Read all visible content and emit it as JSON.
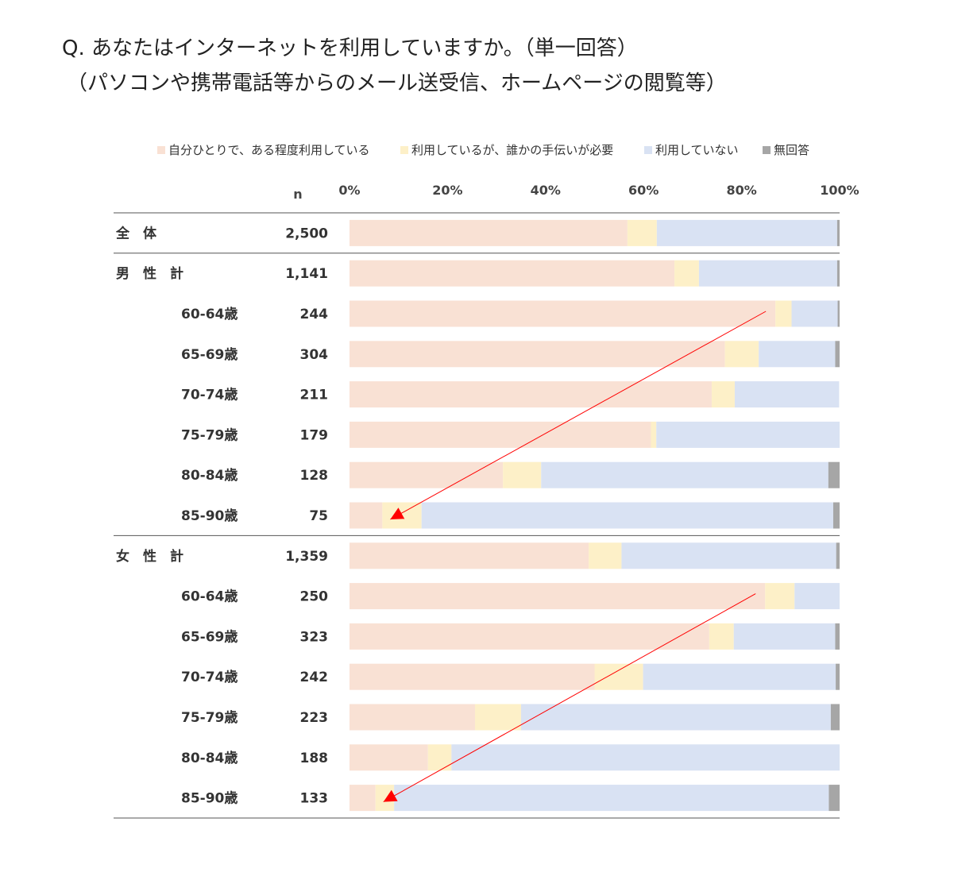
{
  "title": {
    "line1": "Q. あなたはインターネットを利用していますか。（単一回答）",
    "line2": "（パソコンや携帯電話等からのメール送受信、ホームページの閲覧等）"
  },
  "chart_data": {
    "type": "bar",
    "orientation": "horizontal",
    "stacked": "percent",
    "legend_position": "top",
    "n_header": "n",
    "xlim": [
      0,
      100
    ],
    "xticks": [
      "0%",
      "20%",
      "40%",
      "60%",
      "80%",
      "100%"
    ],
    "colors": [
      "#f9e1d4",
      "#fdf0c8",
      "#d9e2f3",
      "#a6a6a6"
    ],
    "series": [
      {
        "name": "自分ひとりで、ある程度利用している"
      },
      {
        "name": "利用しているが、誰かの手伝いが必要"
      },
      {
        "name": "利用していない"
      },
      {
        "name": "無回答"
      }
    ],
    "rows": [
      {
        "label": "全　体",
        "n": "2,500",
        "values": [
          56.7,
          6.0,
          36.8,
          0.5
        ],
        "level": 0
      },
      {
        "label": "男　性　計",
        "n": "1,141",
        "values": [
          66.3,
          5.0,
          28.2,
          0.5
        ],
        "level": 0
      },
      {
        "label": "60-64歳",
        "n": "244",
        "values": [
          86.9,
          3.3,
          9.4,
          0.4
        ],
        "level": 1
      },
      {
        "label": "65-69歳",
        "n": "304",
        "values": [
          76.6,
          6.9,
          15.6,
          0.9
        ],
        "level": 1
      },
      {
        "label": "70-74歳",
        "n": "211",
        "values": [
          73.9,
          4.7,
          21.3,
          0.0
        ],
        "level": 1
      },
      {
        "label": "75-79歳",
        "n": "179",
        "values": [
          61.5,
          1.1,
          37.4,
          0.0
        ],
        "level": 1
      },
      {
        "label": "80-84歳",
        "n": "128",
        "values": [
          31.3,
          7.8,
          58.6,
          2.3
        ],
        "level": 1
      },
      {
        "label": "85-90歳",
        "n": "75",
        "values": [
          6.7,
          8.0,
          84.0,
          1.3
        ],
        "level": 1
      },
      {
        "label": "女　性　計",
        "n": "1,359",
        "values": [
          48.8,
          6.7,
          43.8,
          0.7
        ],
        "level": 0
      },
      {
        "label": "60-64歳",
        "n": "250",
        "values": [
          84.8,
          6.0,
          9.2,
          0.0
        ],
        "level": 1
      },
      {
        "label": "65-69歳",
        "n": "323",
        "values": [
          73.4,
          5.0,
          20.7,
          0.9
        ],
        "level": 1
      },
      {
        "label": "70-74歳",
        "n": "242",
        "values": [
          50.0,
          9.9,
          39.3,
          0.8
        ],
        "level": 1
      },
      {
        "label": "75-79歳",
        "n": "223",
        "values": [
          25.6,
          9.4,
          63.2,
          1.8
        ],
        "level": 1
      },
      {
        "label": "80-84歳",
        "n": "188",
        "values": [
          16.0,
          4.8,
          79.2,
          0.0
        ],
        "level": 1
      },
      {
        "label": "85-90歳",
        "n": "133",
        "values": [
          5.3,
          3.8,
          88.7,
          2.2
        ],
        "level": 1
      }
    ],
    "separators_after": [
      0,
      7,
      14
    ],
    "trend_arrows": [
      {
        "from_row": 2,
        "to_row": 7,
        "series": 0
      },
      {
        "from_row": 9,
        "to_row": 14,
        "series": 0
      }
    ],
    "arrow_color": "#ff0000"
  }
}
